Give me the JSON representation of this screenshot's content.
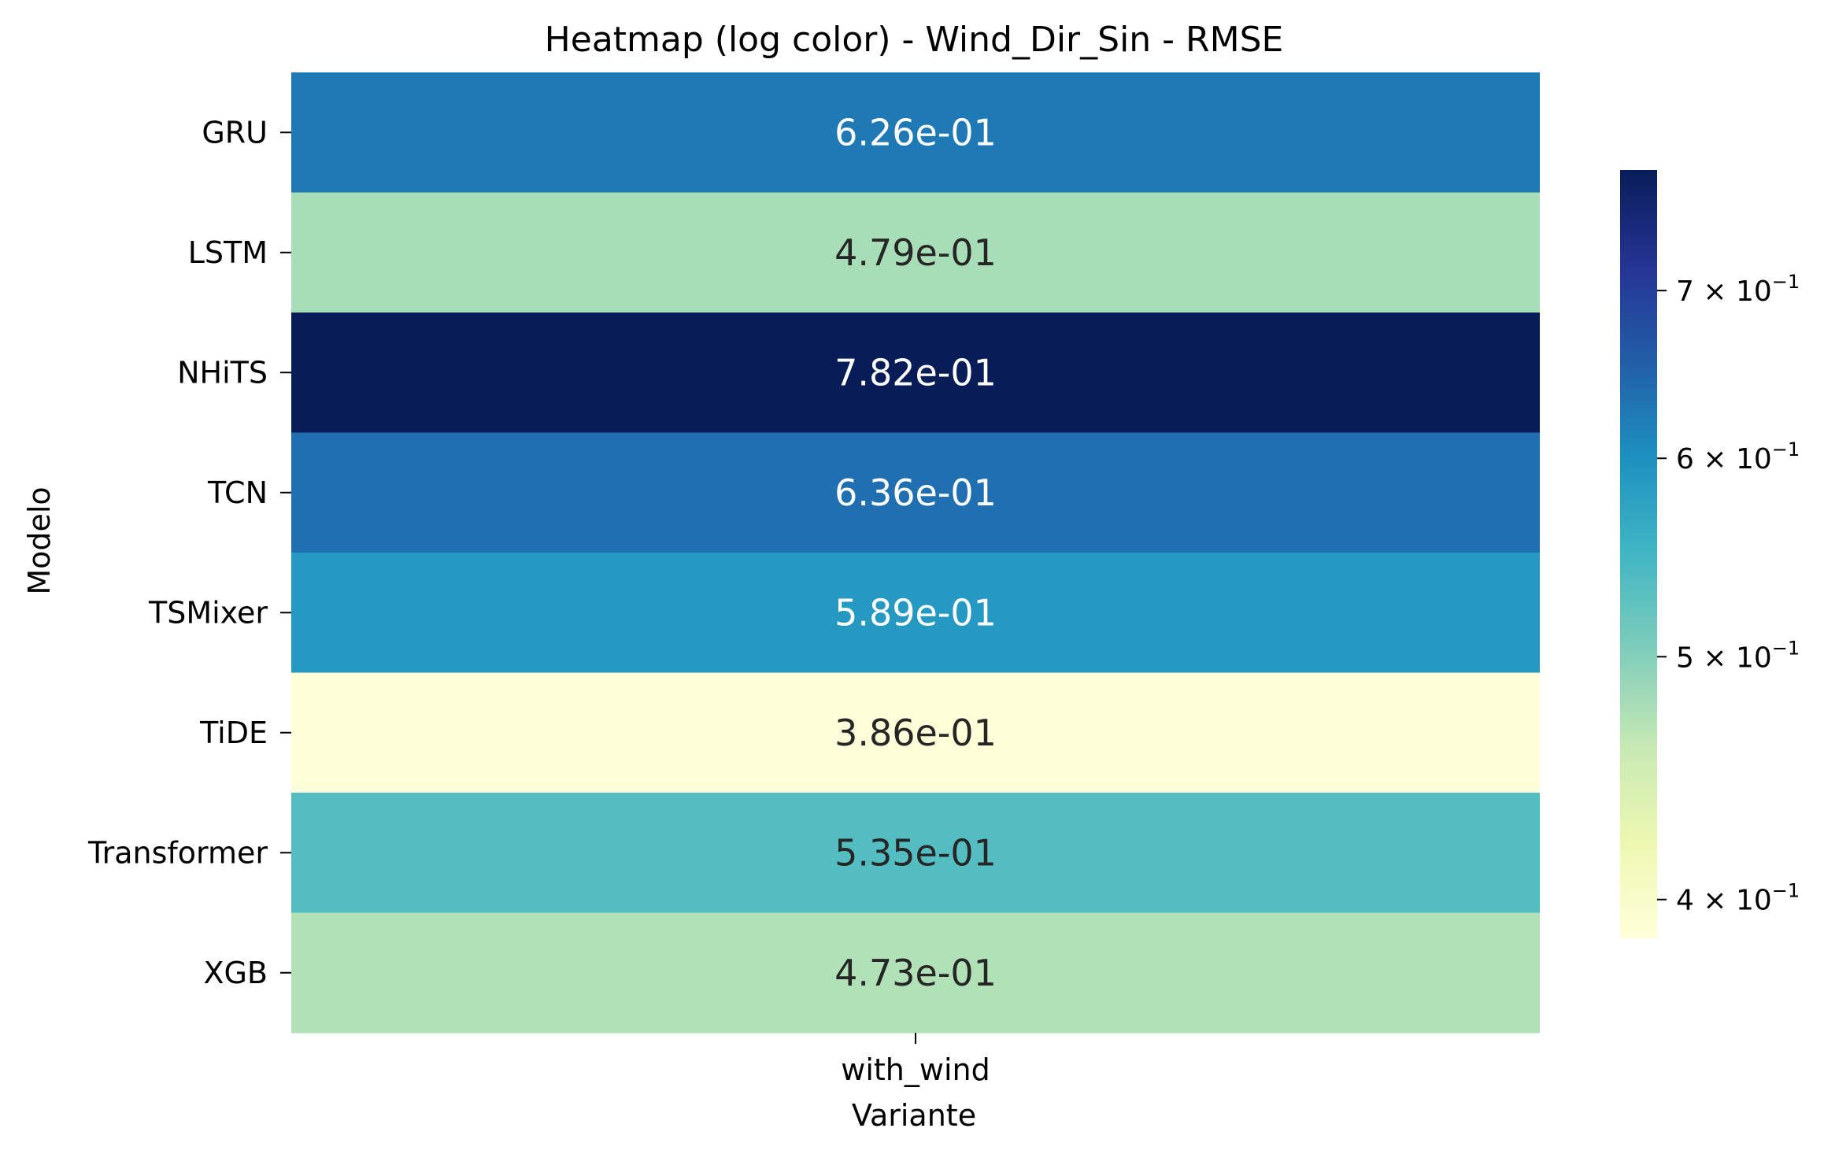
{
  "chart_data": {
    "type": "heatmap",
    "title": "Heatmap (log color) - Wind_Dir_Sin - RMSE",
    "xlabel": "Variante",
    "ylabel": "Modelo",
    "columns": [
      "with_wind"
    ],
    "rows": [
      "GRU",
      "LSTM",
      "NHiTS",
      "TCN",
      "TSMixer",
      "TiDE",
      "Transformer",
      "XGB"
    ],
    "values": [
      [
        0.626
      ],
      [
        0.479
      ],
      [
        0.782
      ],
      [
        0.636
      ],
      [
        0.589
      ],
      [
        0.386
      ],
      [
        0.535
      ],
      [
        0.473
      ]
    ],
    "cell_labels": [
      "6.26e-01",
      "4.79e-01",
      "7.82e-01",
      "6.36e-01",
      "5.89e-01",
      "3.86e-01",
      "5.35e-01",
      "4.73e-01"
    ],
    "colormap": "YlGnBu",
    "color_scale": "log",
    "color_range": [
      0.386,
      0.782
    ],
    "colorbar": {
      "ticks": [
        {
          "value": 0.7,
          "mantissa": "7",
          "exponent": "−1"
        },
        {
          "value": 0.6,
          "mantissa": "6",
          "exponent": "−1"
        },
        {
          "value": 0.5,
          "mantissa": "5",
          "exponent": "−1"
        },
        {
          "value": 0.4,
          "mantissa": "4",
          "exponent": "−1"
        }
      ]
    }
  }
}
